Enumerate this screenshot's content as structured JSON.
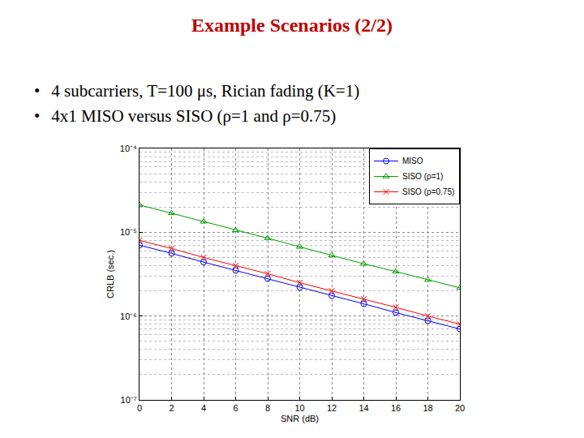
{
  "slide": {
    "title": "Example Scenarios (2/2)",
    "bullets": [
      "4 subcarriers, T=100 μs, Rician fading (K=1)",
      "4x1 MISO versus SISO (ρ=1 and ρ=0.75)"
    ]
  },
  "chart_data": {
    "type": "line",
    "x_label": "SNR (dB)",
    "y_label": "CRLB (sec.)",
    "x": [
      0,
      2,
      4,
      6,
      8,
      10,
      12,
      14,
      16,
      18,
      20
    ],
    "series": [
      {
        "name": "MISO",
        "color": "#0000ff",
        "marker": "circle-open",
        "line_style": "solid",
        "values": [
          7e-06,
          5.6e-06,
          4.4e-06,
          3.5e-06,
          2.8e-06,
          2.2e-06,
          1.75e-06,
          1.4e-06,
          1.1e-06,
          8.8e-07,
          7e-07
        ]
      },
      {
        "name": "SISO (ρ=1)",
        "color": "#00a000",
        "marker": "triangle-up-open",
        "line_style": "solid",
        "values": [
          2.12e-05,
          1.69e-05,
          1.34e-05,
          1.06e-05,
          8.5e-06,
          6.7e-06,
          5.3e-06,
          4.2e-06,
          3.4e-06,
          2.7e-06,
          2.17e-06
        ]
      },
      {
        "name": "SISO (ρ=0.75)",
        "color": "#ff0000",
        "marker": "x-thin-open",
        "line_style": "solid",
        "values": [
          8e-06,
          6.4e-06,
          5e-06,
          4e-06,
          3.2e-06,
          2.5e-06,
          2e-06,
          1.6e-06,
          1.27e-06,
          1e-06,
          8e-07
        ]
      }
    ],
    "xlim": [
      0,
      20
    ],
    "xticks": [
      0,
      2,
      4,
      6,
      8,
      10,
      12,
      14,
      16,
      18,
      20
    ],
    "ylim": [
      1e-07,
      0.0001
    ],
    "yticks": [
      {
        "value": 1e-07,
        "label": "10⁻⁷"
      },
      {
        "value": 1e-06,
        "label": "10⁻⁶"
      },
      {
        "value": 1e-05,
        "label": "10⁻⁵"
      },
      {
        "value": 0.0001,
        "label": "10⁻⁴"
      }
    ],
    "log": "y",
    "grid": true,
    "legend": "upper right"
  }
}
